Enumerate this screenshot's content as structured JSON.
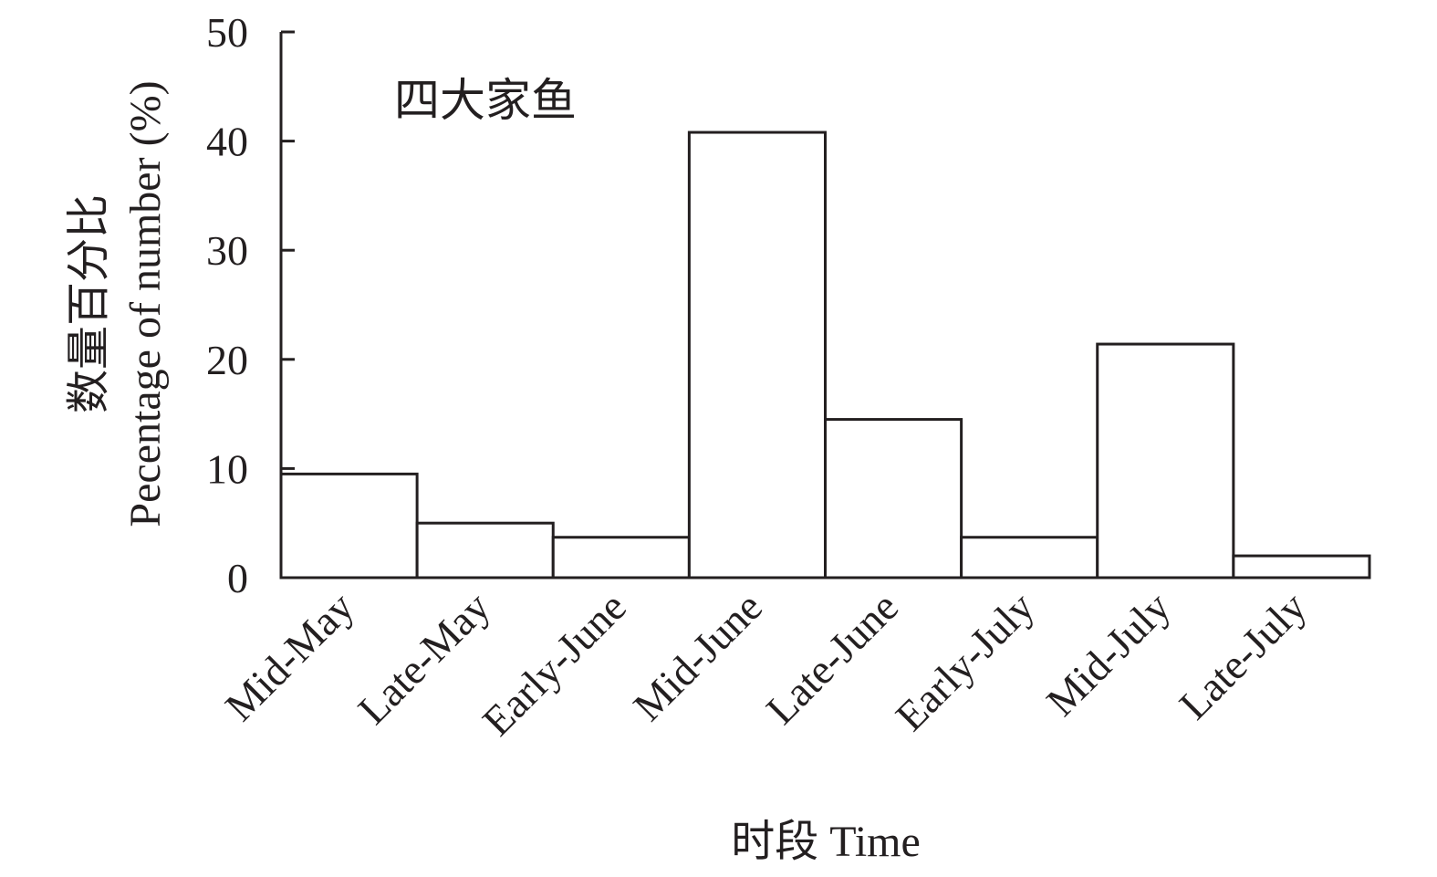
{
  "chart_data": {
    "type": "bar",
    "annotation": "四大家鱼",
    "categories": [
      "Mid-May",
      "Late-May",
      "Early-June",
      "Mid-June",
      "Late-June",
      "Early-July",
      "Mid-July",
      "Late-July"
    ],
    "values": [
      9.5,
      5,
      3.7,
      40.8,
      14.5,
      3.7,
      21.4,
      2
    ],
    "xlabel": "时段 Time",
    "ylabel_cn": "数量百分比",
    "ylabel_en": "Pecentage of number (%)",
    "ylim": [
      0,
      50
    ],
    "yticks": [
      0,
      10,
      20,
      30,
      40,
      50
    ],
    "grid": false,
    "colors": {
      "bar_fill": "#ffffff",
      "stroke": "#231f20"
    }
  }
}
